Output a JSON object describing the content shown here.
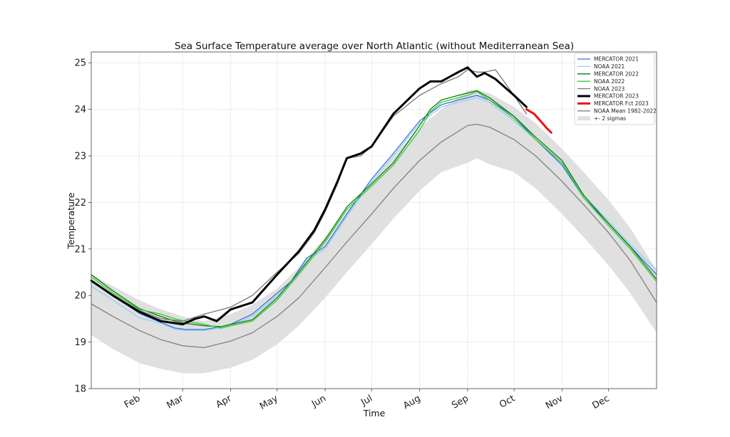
{
  "chart_data": {
    "type": "line",
    "title": "Sea Surface Temperature average over North Atlantic (without Mediterranean Sea)",
    "xlabel": "Time",
    "ylabel": "Temperature",
    "x_unit": "day_of_year",
    "xlim": [
      1,
      366
    ],
    "ylim": [
      18,
      25.2
    ],
    "yticks": [
      18,
      19,
      20,
      21,
      22,
      23,
      24,
      25
    ],
    "xticks": [
      {
        "label": "Feb",
        "day": 32
      },
      {
        "label": "Mar",
        "day": 60
      },
      {
        "label": "Apr",
        "day": 91
      },
      {
        "label": "May",
        "day": 121
      },
      {
        "label": "Jun",
        "day": 152
      },
      {
        "label": "Jul",
        "day": 182
      },
      {
        "label": "Aug",
        "day": 213
      },
      {
        "label": "Sep",
        "day": 244
      },
      {
        "label": "Oct",
        "day": 274
      },
      {
        "label": "Nov",
        "day": 305
      },
      {
        "label": "Dec",
        "day": 335
      }
    ],
    "grid": true,
    "legend_position": "top-right",
    "band": {
      "name": "+- 2 sigmas",
      "color": "#e0e0e0",
      "x": [
        1,
        15,
        32,
        46,
        60,
        74,
        91,
        105,
        121,
        135,
        152,
        166,
        182,
        196,
        213,
        227,
        244,
        250,
        258,
        274,
        288,
        305,
        319,
        335,
        349,
        366
      ],
      "lower": [
        19.15,
        18.85,
        18.55,
        18.42,
        18.33,
        18.33,
        18.45,
        18.62,
        18.95,
        19.35,
        19.95,
        20.5,
        21.1,
        21.65,
        22.25,
        22.65,
        22.85,
        22.95,
        22.82,
        22.65,
        22.3,
        21.75,
        21.25,
        20.65,
        20.05,
        19.2
      ],
      "upper": [
        20.45,
        20.2,
        19.9,
        19.7,
        19.55,
        19.45,
        19.6,
        19.8,
        20.15,
        20.6,
        21.25,
        21.85,
        22.45,
        23.0,
        23.6,
        24.0,
        24.4,
        24.42,
        24.35,
        24.05,
        23.7,
        23.15,
        22.65,
        22.05,
        21.45,
        20.55
      ]
    },
    "series": [
      {
        "name": "MERCATOR 2021",
        "color": "#3d6fe0",
        "width": 1.3,
        "x": [
          1,
          15,
          32,
          46,
          55,
          62,
          74,
          85,
          91,
          105,
          121,
          130,
          140,
          152,
          166,
          182,
          196,
          213,
          227,
          238,
          244,
          250,
          258,
          274,
          288,
          305,
          319,
          335,
          349,
          366
        ],
        "y": [
          20.3,
          20.0,
          19.62,
          19.42,
          19.3,
          19.27,
          19.27,
          19.33,
          19.38,
          19.6,
          20.05,
          20.3,
          20.8,
          21.05,
          21.75,
          22.5,
          23.05,
          23.75,
          24.1,
          24.2,
          24.25,
          24.3,
          24.2,
          23.85,
          23.35,
          22.8,
          22.1,
          21.55,
          21.05,
          20.45
        ]
      },
      {
        "name": "NOAA 2021",
        "color": "#8ed1f5",
        "width": 1.3,
        "x": [
          1,
          15,
          32,
          46,
          55,
          62,
          74,
          85,
          91,
          105,
          121,
          130,
          140,
          152,
          166,
          182,
          196,
          213,
          227,
          238,
          244,
          250,
          258,
          274,
          288,
          305,
          319,
          335,
          349,
          366
        ],
        "y": [
          20.2,
          19.9,
          19.52,
          19.4,
          19.28,
          19.25,
          19.25,
          19.3,
          19.35,
          19.55,
          20.0,
          20.25,
          20.75,
          21.0,
          21.7,
          22.45,
          23.0,
          23.7,
          24.05,
          24.15,
          24.2,
          24.25,
          24.15,
          23.75,
          23.35,
          22.85,
          22.15,
          21.6,
          21.1,
          20.55
        ]
      },
      {
        "name": "MERCATOR 2022",
        "color": "#0a7d0a",
        "width": 1.3,
        "x": [
          1,
          15,
          32,
          46,
          55,
          62,
          74,
          85,
          91,
          105,
          121,
          135,
          152,
          166,
          182,
          196,
          213,
          220,
          227,
          238,
          244,
          250,
          258,
          274,
          288,
          305,
          319,
          335,
          349,
          366
        ],
        "y": [
          20.45,
          20.1,
          19.72,
          19.55,
          19.45,
          19.4,
          19.35,
          19.33,
          19.38,
          19.48,
          19.95,
          20.5,
          21.2,
          21.9,
          22.4,
          22.85,
          23.65,
          24.0,
          24.2,
          24.3,
          24.35,
          24.4,
          24.25,
          23.85,
          23.4,
          22.9,
          22.15,
          21.55,
          21.05,
          20.35
        ]
      },
      {
        "name": "NOAA 2022",
        "color": "#33cc33",
        "width": 1.3,
        "x": [
          1,
          15,
          32,
          46,
          55,
          62,
          74,
          85,
          91,
          105,
          121,
          135,
          152,
          166,
          182,
          196,
          213,
          220,
          227,
          238,
          244,
          250,
          258,
          274,
          288,
          305,
          319,
          335,
          349,
          366
        ],
        "y": [
          20.4,
          20.05,
          19.7,
          19.6,
          19.5,
          19.45,
          19.38,
          19.3,
          19.35,
          19.45,
          19.9,
          20.45,
          21.15,
          21.85,
          22.35,
          22.8,
          23.55,
          23.95,
          24.15,
          24.25,
          24.3,
          24.38,
          24.2,
          23.8,
          23.35,
          22.85,
          22.1,
          21.5,
          21.0,
          20.3
        ]
      },
      {
        "name": "NOAA 2023",
        "color": "#777777",
        "width": 1.3,
        "x": [
          1,
          15,
          32,
          46,
          60,
          74,
          91,
          105,
          121,
          135,
          145,
          152,
          160,
          166,
          175,
          182,
          196,
          213,
          227,
          238,
          244,
          250,
          255,
          262,
          274,
          282
        ],
        "y": [
          20.3,
          20.0,
          19.68,
          19.5,
          19.45,
          19.6,
          19.75,
          20.0,
          20.5,
          20.9,
          21.35,
          21.8,
          22.4,
          22.95,
          23.0,
          23.2,
          23.85,
          24.3,
          24.55,
          24.7,
          24.85,
          24.8,
          24.8,
          24.85,
          24.3,
          23.9
        ]
      },
      {
        "name": "MERCATOR 2023",
        "color": "#000000",
        "width": 3,
        "x": [
          1,
          15,
          32,
          46,
          60,
          68,
          74,
          82,
          91,
          105,
          121,
          135,
          145,
          152,
          160,
          166,
          175,
          182,
          196,
          213,
          220,
          227,
          238,
          244,
          250,
          255,
          262,
          274,
          282
        ],
        "y": [
          20.32,
          20.0,
          19.65,
          19.45,
          19.38,
          19.5,
          19.55,
          19.45,
          19.7,
          19.85,
          20.45,
          20.95,
          21.4,
          21.85,
          22.45,
          22.95,
          23.05,
          23.2,
          23.9,
          24.45,
          24.6,
          24.6,
          24.8,
          24.9,
          24.7,
          24.78,
          24.65,
          24.3,
          24.05
        ]
      },
      {
        "name": "MERCATOR Fct 2023",
        "color": "#ee1111",
        "width": 3,
        "x": [
          282,
          287,
          291,
          295,
          298
        ],
        "y": [
          24.0,
          23.9,
          23.75,
          23.6,
          23.5
        ]
      },
      {
        "name": "NOAA Mean 1982-2022",
        "color": "#808080",
        "width": 1.3,
        "x": [
          1,
          15,
          32,
          46,
          60,
          74,
          91,
          105,
          121,
          135,
          152,
          166,
          182,
          196,
          213,
          227,
          244,
          250,
          258,
          274,
          288,
          305,
          319,
          335,
          349,
          366
        ],
        "y": [
          19.82,
          19.55,
          19.25,
          19.05,
          18.92,
          18.88,
          19.02,
          19.2,
          19.55,
          19.95,
          20.6,
          21.15,
          21.75,
          22.3,
          22.9,
          23.3,
          23.65,
          23.68,
          23.62,
          23.35,
          23.0,
          22.45,
          21.95,
          21.35,
          20.75,
          19.85
        ]
      }
    ],
    "legend": [
      {
        "label": "MERCATOR 2021",
        "color": "#3d6fe0",
        "kind": "line-thin"
      },
      {
        "label": "NOAA 2021",
        "color": "#8ed1f5",
        "kind": "line-thin"
      },
      {
        "label": "MERCATOR 2022",
        "color": "#0a7d0a",
        "kind": "line-thin"
      },
      {
        "label": "NOAA 2022",
        "color": "#33cc33",
        "kind": "line-thin"
      },
      {
        "label": "NOAA 2023",
        "color": "#777777",
        "kind": "line-thin"
      },
      {
        "label": "MERCATOR 2023",
        "color": "#000000",
        "kind": "line-thick"
      },
      {
        "label": "MERCATOR Fct 2023",
        "color": "#ee1111",
        "kind": "line-thick"
      },
      {
        "label": "NOAA Mean 1982-2022",
        "color": "#808080",
        "kind": "line-thin"
      },
      {
        "label": "+- 2 sigmas",
        "color": "#e0e0e0",
        "kind": "patch"
      }
    ]
  }
}
